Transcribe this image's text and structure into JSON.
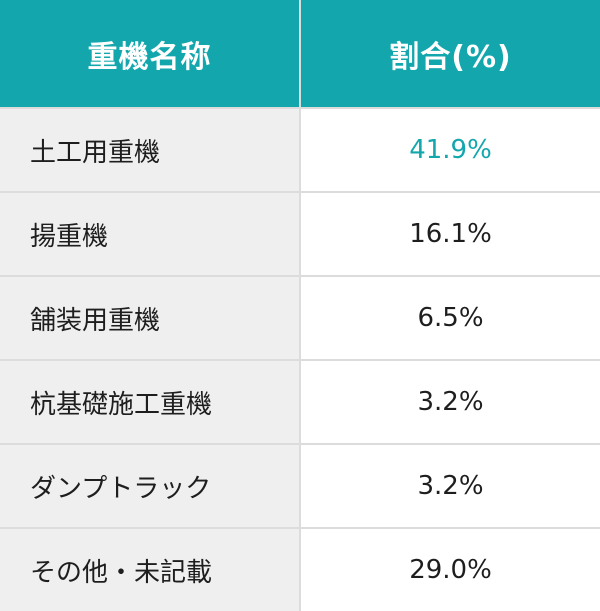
{
  "header": {
    "col_name": "重機名称",
    "col_ratio": "割合(%)"
  },
  "accent_color": "#13a7ad",
  "rows": [
    {
      "name": "土工用重機",
      "ratio": "41.9%"
    },
    {
      "name": "揚重機",
      "ratio": "16.1%"
    },
    {
      "name": "舗装用重機",
      "ratio": "6.5%"
    },
    {
      "name": "杭基礎施工重機",
      "ratio": "3.2%"
    },
    {
      "name": "ダンプトラック",
      "ratio": "3.2%"
    },
    {
      "name": "その他・未記載",
      "ratio": "29.0%"
    }
  ]
}
